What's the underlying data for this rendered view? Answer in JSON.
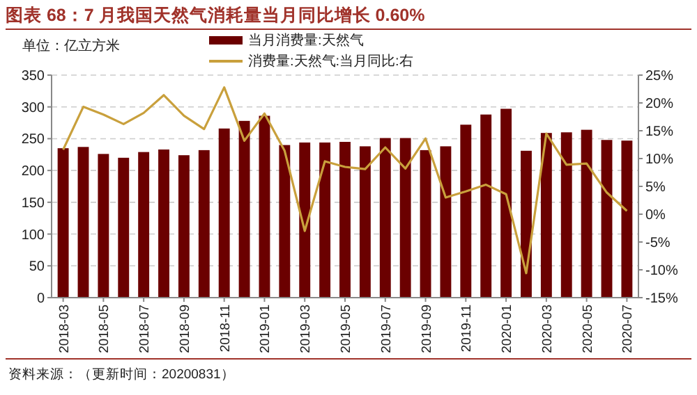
{
  "chart_data": {
    "type": "bar",
    "title": "图表 68：7 月我国天然气消耗量当月同比增长 0.60%",
    "ylabel": "单位：亿立方米",
    "categories": [
      "2018-03",
      null,
      "2018-05",
      null,
      "2018-07",
      null,
      "2018-09",
      null,
      "2018-11",
      null,
      "2019-01",
      null,
      "2019-03",
      null,
      "2019-05",
      null,
      "2019-07",
      null,
      "2019-09",
      null,
      "2019-11",
      null,
      "2020-01",
      null,
      "2020-03",
      null,
      "2020-05",
      null,
      "2020-07"
    ],
    "series": [
      {
        "name": "当月消费量:天然气",
        "color": "#6b0000",
        "values": [
          235,
          237,
          226,
          220,
          229,
          233,
          224,
          232,
          266,
          278,
          286,
          240,
          244,
          244,
          245,
          238,
          251,
          251,
          232,
          238,
          272,
          288,
          297,
          231,
          259,
          260,
          264,
          248,
          247
        ]
      },
      {
        "name": "消费量:天然气:当月同比:右",
        "type": "line",
        "axis": "y2",
        "color": "#c9a03c",
        "values": [
          11.6,
          19.3,
          17.9,
          16.2,
          18.2,
          21.4,
          17.7,
          15.3,
          22.8,
          13.2,
          18.1,
          11.4,
          -3.0,
          9.5,
          8.5,
          8.1,
          12.0,
          8.2,
          13.6,
          3.0,
          4.1,
          5.3,
          3.6,
          -10.6,
          14.5,
          8.9,
          9.1,
          3.9,
          0.6
        ]
      }
    ],
    "ylim": [
      0,
      350
    ],
    "yticks": [
      0,
      50,
      100,
      150,
      200,
      250,
      300,
      350
    ],
    "y2lim": [
      -15,
      25
    ],
    "y2ticks": [
      {
        "value": -15,
        "label": "-15%"
      },
      {
        "value": -10,
        "label": "-10%"
      },
      {
        "value": -5,
        "label": "-5%"
      },
      {
        "value": 0,
        "label": "0%"
      },
      {
        "value": 5,
        "label": "5%"
      },
      {
        "value": 10,
        "label": "10%"
      },
      {
        "value": 15,
        "label": "15%"
      },
      {
        "value": 20,
        "label": "20%"
      },
      {
        "value": 25,
        "label": "25%"
      }
    ],
    "grid": "y",
    "legend": "top",
    "marker": "none",
    "line_style": "solid",
    "annotations": [
      "资料来源：（更新时间：20200831）"
    ]
  }
}
